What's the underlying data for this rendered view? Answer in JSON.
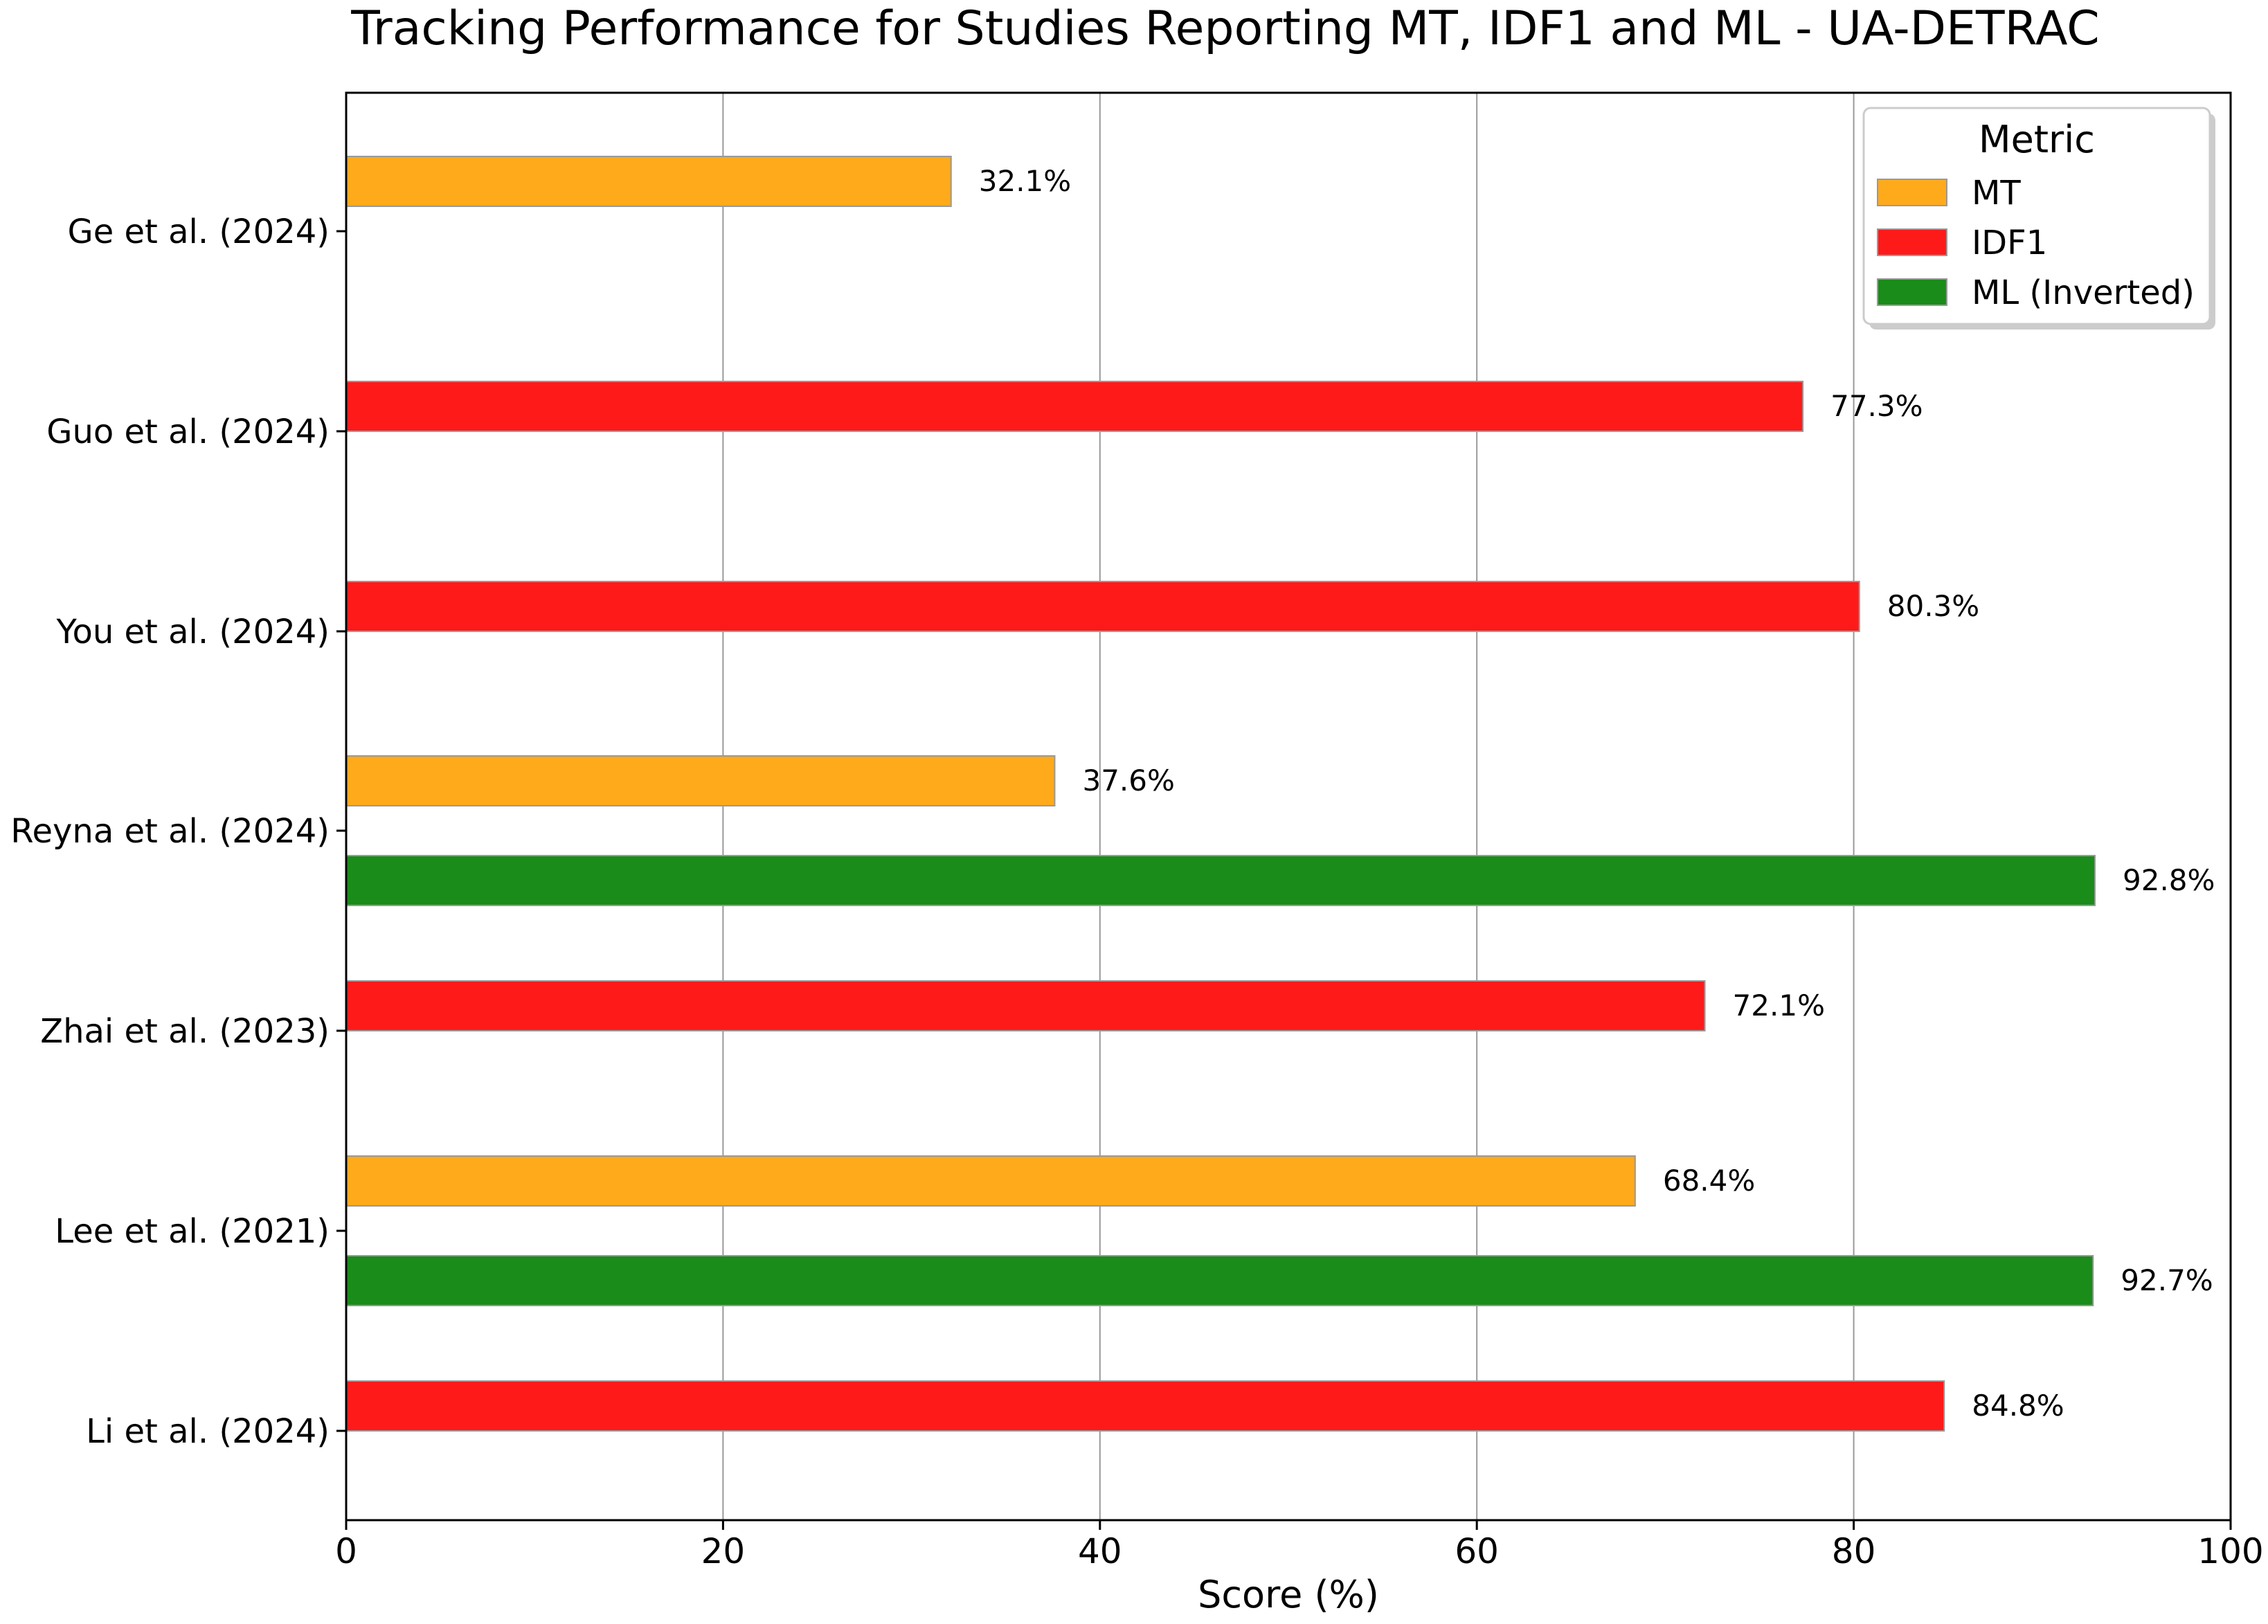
{
  "chart_data": {
    "type": "bar",
    "orientation": "horizontal",
    "title": "Tracking Performance for Studies Reporting MT, IDF1 and ML - UA-DETRAC",
    "xlabel": "Score (%)",
    "ylabel": "",
    "xlim": [
      0,
      100
    ],
    "xticks": [
      "0",
      "20",
      "40",
      "60",
      "80",
      "100"
    ],
    "grid": "vertical",
    "categories": [
      "Ge et al. (2024)",
      "Guo et al. (2024)",
      "You et al. (2024)",
      "Reyna et al. (2024)",
      "Zhai et al. (2023)",
      "Lee et al. (2021)",
      "Li et al. (2024)"
    ],
    "series": [
      {
        "name": "MT",
        "color": "#FFAA1A",
        "values": [
          32.1,
          null,
          null,
          37.6,
          null,
          68.4,
          null
        ],
        "labels": [
          "32.1%",
          null,
          null,
          "37.6%",
          null,
          "68.4%",
          null
        ]
      },
      {
        "name": "IDF1",
        "color": "#FF1A1A",
        "values": [
          null,
          77.3,
          80.3,
          null,
          72.1,
          null,
          84.8
        ],
        "labels": [
          null,
          "77.3%",
          "80.3%",
          null,
          "72.1%",
          null,
          "84.8%"
        ]
      },
      {
        "name": "ML (Inverted)",
        "color": "#1A8C1A",
        "values": [
          null,
          null,
          null,
          92.8,
          null,
          92.7,
          null
        ],
        "labels": [
          null,
          null,
          null,
          "92.8%",
          null,
          "92.7%",
          null
        ]
      }
    ],
    "legend": {
      "title": "Metric",
      "position": "top-right"
    }
  }
}
